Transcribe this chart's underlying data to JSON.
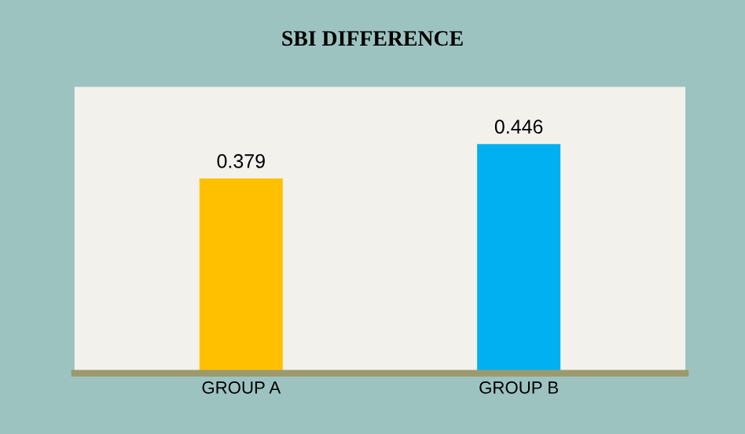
{
  "chart_data": {
    "type": "bar",
    "title": "SBI DIFFERENCE",
    "categories": [
      "GROUP A",
      "GROUP B"
    ],
    "values": [
      0.379,
      0.446
    ],
    "colors": [
      "#ffc000",
      "#00b0f0"
    ],
    "data_labels": true,
    "grid": false,
    "legend": false,
    "tick_labels": "x"
  }
}
